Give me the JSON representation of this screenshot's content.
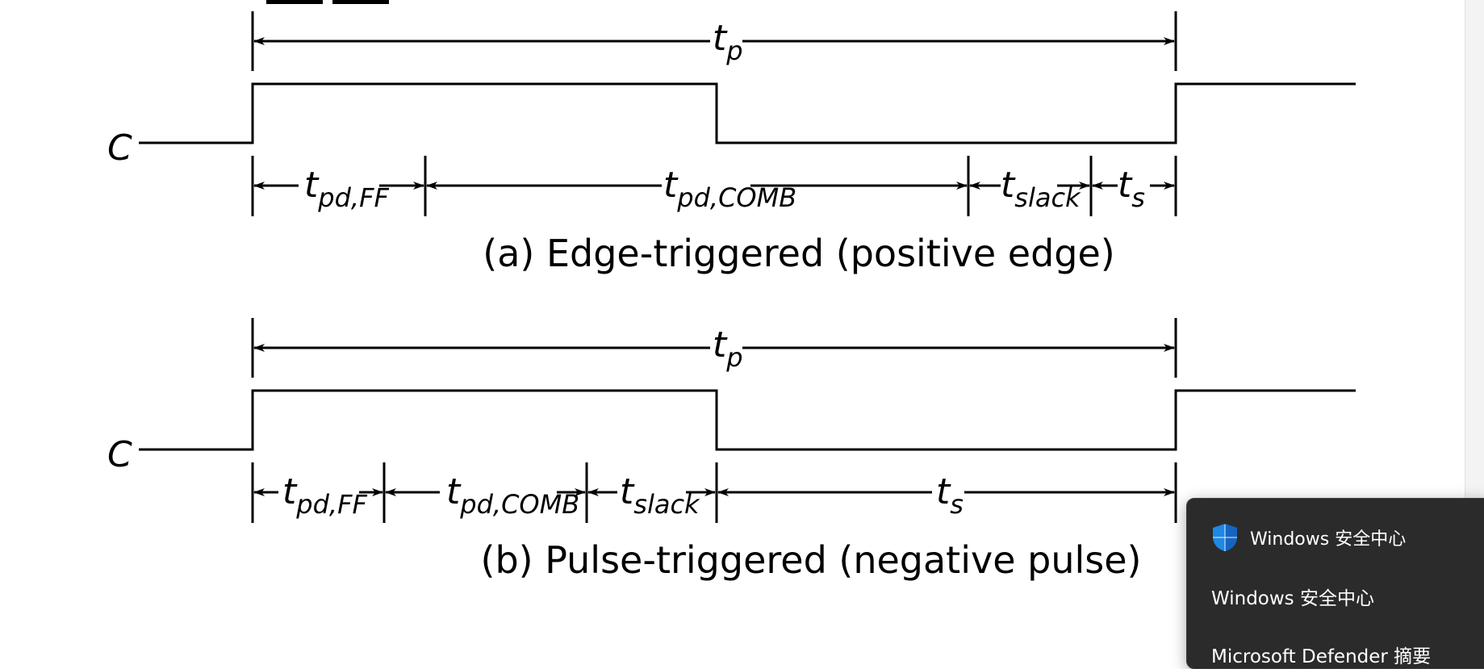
{
  "document": {
    "partial_heading": "",
    "diagram_a": {
      "signal_label": "C",
      "period": {
        "symbol": "t",
        "sub": "p"
      },
      "intervals": [
        {
          "symbol": "t",
          "sub": "pd,FF"
        },
        {
          "symbol": "t",
          "sub": "pd,COMB"
        },
        {
          "symbol": "t",
          "sub": "slack"
        },
        {
          "symbol": "t",
          "sub": "s"
        }
      ],
      "caption": "(a) Edge-triggered (positive edge)"
    },
    "diagram_b": {
      "signal_label": "C",
      "period": {
        "symbol": "t",
        "sub": "p"
      },
      "intervals": [
        {
          "symbol": "t",
          "sub": "pd,FF"
        },
        {
          "symbol": "t",
          "sub": "pd,COMB"
        },
        {
          "symbol": "t",
          "sub": "slack"
        },
        {
          "symbol": "t",
          "sub": "s"
        }
      ],
      "caption": "(b) Pulse-triggered (negative pulse)"
    }
  },
  "notification": {
    "app_name": "Windows 安全中心",
    "title": "Windows 安全中心",
    "body_partial": "Microsoft Defender 摘要",
    "icon": "windows-security-shield-icon",
    "colors": {
      "background": "#2b2b2b",
      "shield": "#1e88e5",
      "text": "#ffffff"
    }
  }
}
